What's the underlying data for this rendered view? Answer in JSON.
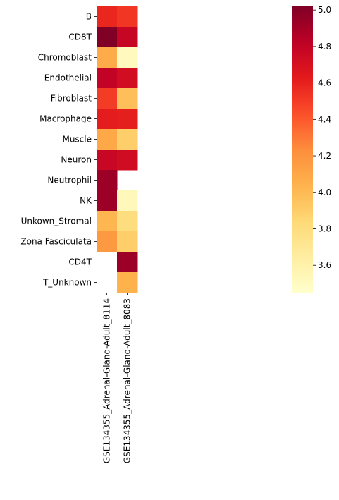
{
  "chart_data": {
    "type": "heatmap",
    "rows": [
      "B",
      "CD8T",
      "Chromoblast",
      "Endothelial",
      "Fibroblast",
      "Macrophage",
      "Muscle",
      "Neuron",
      "Neutrophil",
      "NK",
      "Unkown_Stromal",
      "Zona Fasciculata",
      "CD4T",
      "T_Unknown"
    ],
    "columns": [
      "GSE134355_Adrenal-Gland-Adult_8114",
      "GSE134355_Adrenal-Gland-Adult_8083"
    ],
    "values": [
      [
        4.58,
        4.52
      ],
      [
        5.02,
        4.78
      ],
      [
        4.07,
        3.51
      ],
      [
        4.8,
        4.72
      ],
      [
        4.5,
        3.98
      ],
      [
        4.62,
        4.61
      ],
      [
        4.09,
        3.9
      ],
      [
        4.77,
        4.73
      ],
      [
        4.93,
        null
      ],
      [
        4.93,
        3.53
      ],
      [
        4.02,
        3.8
      ],
      [
        4.17,
        3.9
      ],
      [
        null,
        4.93
      ],
      [
        null,
        4.04
      ]
    ],
    "colorbar": {
      "min": 3.45,
      "max": 5.02,
      "ticks": [
        "3.6",
        "3.8",
        "4.0",
        "4.2",
        "4.4",
        "4.6",
        "4.8",
        "5.0"
      ],
      "colormap": "YlOrRd"
    }
  }
}
